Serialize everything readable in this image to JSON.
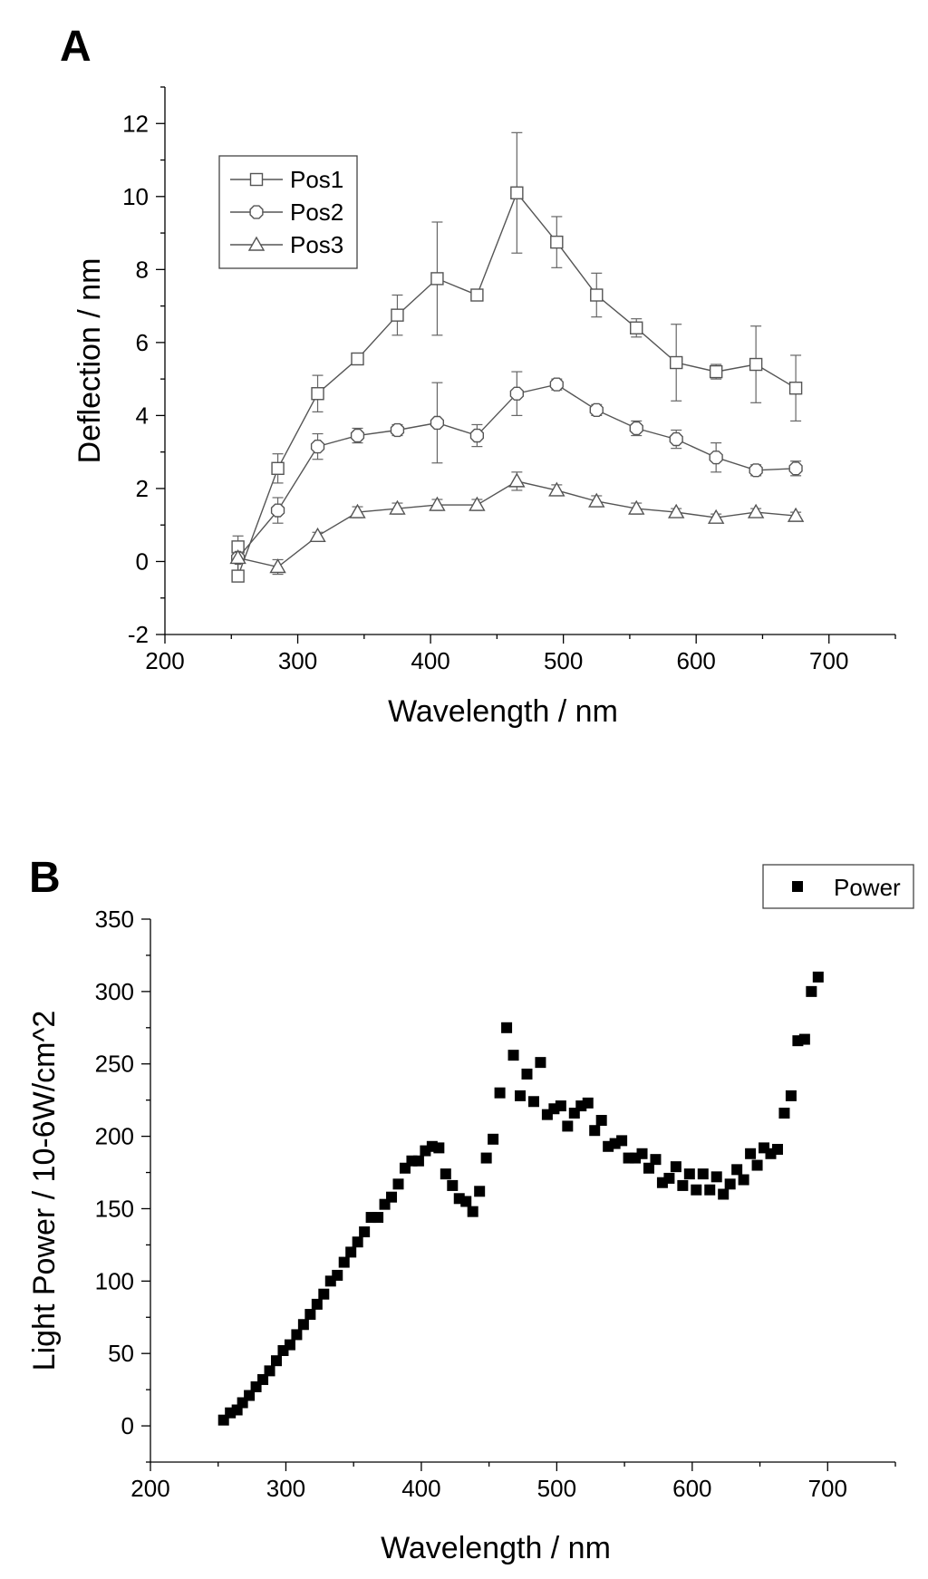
{
  "chart_data": [
    {
      "panel_label": "A",
      "type": "line",
      "xlabel": "Wavelength / nm",
      "ylabel": "Deflection / nm",
      "xlim": [
        200,
        750
      ],
      "ylim": [
        -2,
        13
      ],
      "xticks": [
        200,
        300,
        400,
        500,
        600,
        700
      ],
      "yticks": [
        -2,
        0,
        2,
        4,
        6,
        8,
        10,
        12
      ],
      "grid": false,
      "legend_position": "upper-left",
      "x": [
        255,
        285,
        315,
        345,
        375,
        405,
        435,
        465,
        495,
        525,
        555,
        585,
        615,
        645,
        675
      ],
      "series": [
        {
          "name": "Pos1",
          "marker": "square",
          "x": [
            255,
            255,
            285,
            315,
            345,
            375,
            405,
            435,
            465,
            495,
            525,
            555,
            585,
            615,
            645,
            675
          ],
          "values": [
            0.4,
            -0.4,
            2.55,
            4.6,
            5.55,
            6.75,
            7.75,
            7.3,
            10.1,
            8.75,
            7.3,
            6.4,
            5.45,
            5.2,
            5.4,
            4.75
          ],
          "errors": [
            0.3,
            0.1,
            0.4,
            0.5,
            0.15,
            0.55,
            1.55,
            0.1,
            1.65,
            0.7,
            0.6,
            0.25,
            1.05,
            0.2,
            1.05,
            0.9
          ]
        },
        {
          "name": "Pos2",
          "marker": "octagon",
          "x": [
            255,
            285,
            315,
            345,
            375,
            405,
            435,
            465,
            495,
            525,
            555,
            585,
            615,
            645,
            675
          ],
          "values": [
            0.1,
            1.4,
            3.15,
            3.45,
            3.6,
            3.8,
            3.45,
            4.6,
            4.85,
            4.15,
            3.65,
            3.35,
            2.85,
            2.5,
            2.55
          ],
          "errors": [
            0.1,
            0.35,
            0.35,
            0.2,
            0.15,
            1.1,
            0.3,
            0.6,
            0.15,
            0.15,
            0.2,
            0.25,
            0.4,
            0.15,
            0.2
          ]
        },
        {
          "name": "Pos3",
          "marker": "triangle",
          "x": [
            255,
            285,
            315,
            345,
            375,
            405,
            435,
            465,
            495,
            525,
            555,
            585,
            615,
            645,
            675
          ],
          "values": [
            0.1,
            -0.15,
            0.7,
            1.35,
            1.45,
            1.55,
            1.55,
            2.2,
            1.95,
            1.65,
            1.45,
            1.35,
            1.2,
            1.35,
            1.25
          ],
          "errors": [
            0.15,
            0.2,
            0.1,
            0.15,
            0.15,
            0.15,
            0.15,
            0.25,
            0.15,
            0.15,
            0.15,
            0.1,
            0.1,
            0.1,
            0.1
          ]
        }
      ]
    },
    {
      "panel_label": "B",
      "type": "scatter",
      "xlabel": "Wavelength / nm",
      "ylabel": "Light Power / 10-6W/cm^2",
      "xlim": [
        200,
        750
      ],
      "ylim": [
        -25,
        350
      ],
      "xticks": [
        200,
        300,
        400,
        500,
        600,
        700
      ],
      "yticks": [
        0,
        50,
        100,
        150,
        200,
        250,
        300,
        350
      ],
      "grid": false,
      "legend_position": "top-right",
      "series": [
        {
          "name": "Power",
          "marker": "filled-square",
          "x": [
            254,
            259,
            264,
            268,
            273,
            278,
            283,
            288,
            293,
            298,
            303,
            308,
            313,
            318,
            323,
            328,
            333,
            338,
            343,
            348,
            353,
            358,
            363,
            368,
            373,
            378,
            383,
            388,
            393,
            398,
            403,
            408,
            413,
            418,
            423,
            428,
            433,
            438,
            443,
            448,
            453,
            458,
            463,
            468,
            473,
            478,
            483,
            488,
            493,
            498,
            503,
            508,
            513,
            518,
            523,
            528,
            533,
            538,
            543,
            548,
            553,
            558,
            563,
            568,
            573,
            578,
            583,
            588,
            593,
            598,
            603,
            608,
            613,
            618,
            623,
            628,
            633,
            638,
            643,
            648,
            653,
            658,
            663,
            668,
            673,
            678,
            683,
            688,
            693
          ],
          "values": [
            4,
            9,
            11,
            16,
            21,
            27,
            32,
            38,
            45,
            52,
            56,
            63,
            70,
            77,
            84,
            91,
            100,
            104,
            113,
            120,
            127,
            134,
            144,
            144,
            153,
            158,
            167,
            178,
            183,
            183,
            190,
            193,
            192,
            174,
            166,
            157,
            155,
            148,
            162,
            185,
            198,
            230,
            275,
            256,
            228,
            243,
            224,
            251,
            215,
            219,
            221,
            207,
            216,
            221,
            223,
            204,
            211,
            193,
            195,
            197,
            185,
            185,
            188,
            178,
            184,
            168,
            171,
            179,
            166,
            174,
            163,
            174,
            163,
            172,
            160,
            167,
            177,
            170,
            188,
            180,
            192,
            188,
            191,
            216,
            228,
            266,
            267,
            300,
            310
          ]
        }
      ]
    }
  ]
}
